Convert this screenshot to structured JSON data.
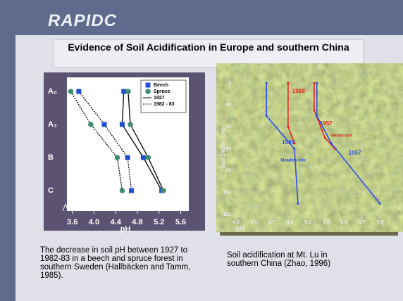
{
  "logo": "RAPIDC",
  "title": "Evidence of Soil Acidification in Europe and southern China",
  "left_chart": {
    "type": "line",
    "categories": [
      "A₀",
      "A₂",
      "B",
      "C"
    ],
    "xlabel": "pH",
    "xlim": [
      3.5,
      5.75
    ],
    "xticks": [
      3.6,
      {
        "value": 4,
        "label": "4.0"
      },
      4.4,
      4.8,
      5.2,
      5.6
    ],
    "markers": [
      {
        "name": "Beech",
        "color": "#1f4fd0",
        "shape": "square"
      },
      {
        "name": "Spruce",
        "color": "#3f8c6f",
        "shape": "circle"
      }
    ],
    "lines": [
      {
        "name": "1927",
        "style": "solid"
      },
      {
        "name": "1982 - 83",
        "style": "dotted"
      }
    ],
    "series": [
      {
        "marker": 0,
        "line": 0,
        "values": [
          4.55,
          4.52,
          4.91,
          5.25
        ]
      },
      {
        "marker": 1,
        "line": 0,
        "values": [
          4.63,
          4.67,
          5.0,
          5.28
        ]
      },
      {
        "marker": 0,
        "line": 1,
        "values": [
          3.72,
          4.19,
          4.62,
          4.69
        ]
      },
      {
        "marker": 1,
        "line": 1,
        "values": [
          3.57,
          3.94,
          4.43,
          4.52
        ]
      }
    ]
  },
  "left_caption": "The decrease in soil pH between 1927 to 1982-83 in a beech and spruce forest in southern Sweden (Hallbäcken and Tamm, 1985).",
  "right_chart": {
    "type": "line",
    "xlabel": "pH",
    "ylabel": "Soil Depth (cm)",
    "xlim": [
      4.2,
      6.0
    ],
    "ylim": [
      0,
      120
    ],
    "xticks": [
      4.3,
      4.5,
      4.7,
      4.9,
      5.1,
      5.3,
      5.5,
      5.7,
      5.9
    ],
    "yticks": [
      0,
      20,
      40,
      60,
      80,
      100,
      120
    ],
    "sites": [
      {
        "name": "Yellow site",
        "color": "#e8241e",
        "series": [
          {
            "name": "1989",
            "x": [
              4.88,
              4.88,
              4.95
            ],
            "y": [
              0,
              40,
              55
            ]
          },
          {
            "name": "1957",
            "x": [
              5.17,
              5.17,
              5.29,
              5.4
            ],
            "y": [
              0,
              25,
              50,
              60
            ]
          }
        ]
      },
      {
        "name": "Meadow site",
        "color": "#2f4fe6",
        "series": [
          {
            "name": "1989",
            "x": [
              4.64,
              4.64,
              4.95,
              4.99
            ],
            "y": [
              0,
              30,
              60,
              110
            ]
          },
          {
            "name": "1957",
            "x": [
              5.2,
              5.2,
              5.36,
              5.9
            ],
            "y": [
              0,
              30,
              55,
              110
            ]
          }
        ]
      }
    ]
  },
  "right_caption": "Soil acidification at Mt. Lu in southern China (Zhao, 1996)"
}
